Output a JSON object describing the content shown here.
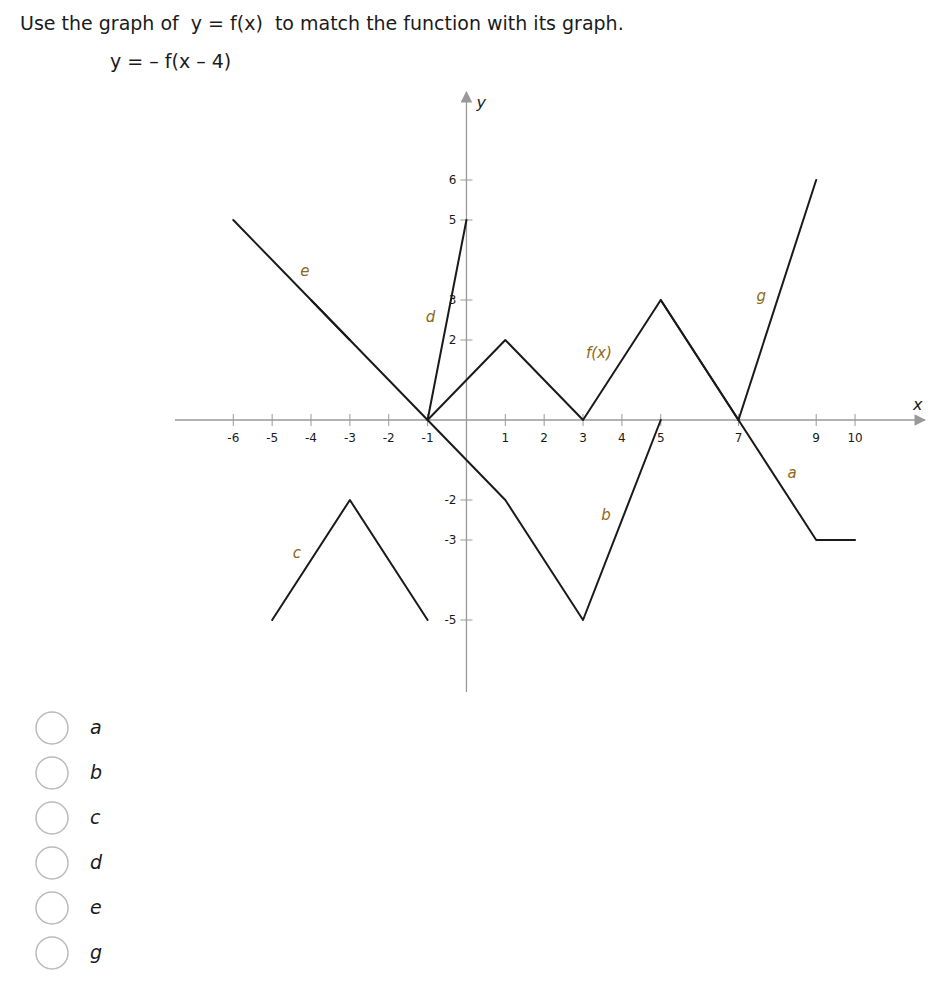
{
  "chart_data": {
    "type": "line",
    "title": "Use the graph of  y = f(x)  to match the function with its graph.",
    "subtitle": "y = – f(x – 4)",
    "x_label": "x",
    "y_label": "y",
    "xlim": [
      -7.5,
      11.8
    ],
    "ylim": [
      -6.8,
      8.2
    ],
    "xticks": [
      -6,
      -5,
      -4,
      -3,
      -2,
      -1,
      1,
      2,
      3,
      4,
      5,
      7,
      9,
      10
    ],
    "yticks": [
      -5,
      -3,
      -2,
      2,
      3,
      5,
      6
    ],
    "grid": false,
    "series": [
      {
        "name": "f(x)",
        "color": "#1a1a1a",
        "x": [
          -1,
          1,
          3,
          5,
          7
        ],
        "values": [
          0,
          2,
          0,
          3,
          0
        ]
      },
      {
        "name": "e",
        "color": "#1a1a1a",
        "x": [
          -6,
          -3
        ],
        "values": [
          5,
          2
        ]
      },
      {
        "name": "d",
        "color": "#1a1a1a",
        "x": [
          -4,
          -1,
          0
        ],
        "values": [
          3,
          0,
          5
        ]
      },
      {
        "name": "g",
        "color": "#1a1a1a",
        "x": [
          5,
          7,
          9
        ],
        "values": [
          3,
          0,
          6
        ]
      },
      {
        "name": "b",
        "color": "#1a1a1a",
        "x": [
          -1,
          1,
          3,
          5
        ],
        "values": [
          0,
          -2,
          -5,
          0
        ]
      },
      {
        "name": "c",
        "color": "#1a1a1a",
        "x": [
          -5,
          -3,
          -1
        ],
        "values": [
          -5,
          -2,
          -5
        ]
      },
      {
        "name": "a",
        "color": "#1a1a1a",
        "x": [
          7,
          9,
          10
        ],
        "values": [
          0,
          -3,
          -3
        ]
      }
    ],
    "options": [
      "a",
      "b",
      "c",
      "d",
      "e",
      "g"
    ]
  }
}
